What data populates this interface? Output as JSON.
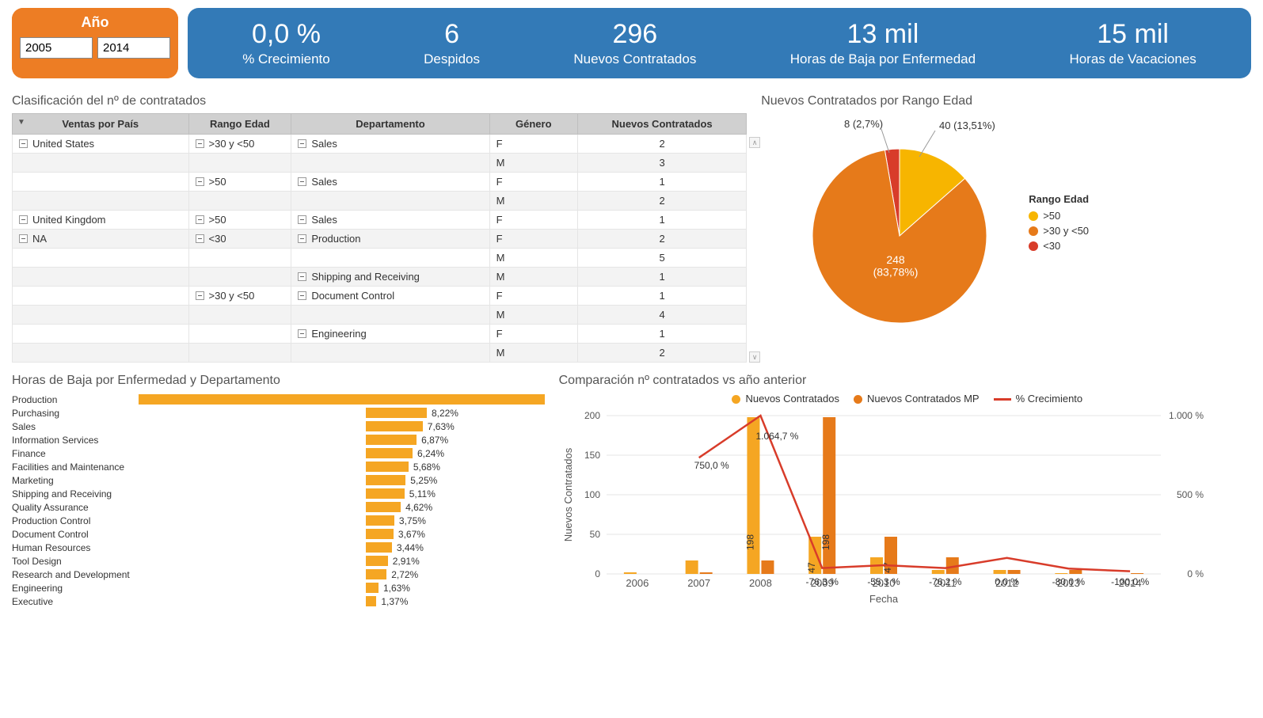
{
  "colors": {
    "orange": "#ed7d24",
    "orange_light": "#f5a623",
    "orange_pie": "#e67a1a",
    "amber": "#f7b500",
    "red": "#d83c2a",
    "blue": "#337ab7",
    "grid": "#e0e0e0",
    "white": "#ffffff"
  },
  "year_filter": {
    "title": "Año",
    "from": "2005",
    "to": "2014"
  },
  "kpis": [
    {
      "value": "0,0 %",
      "label": "% Crecimiento"
    },
    {
      "value": "6",
      "label": "Despidos"
    },
    {
      "value": "296",
      "label": "Nuevos Contratados"
    },
    {
      "value": "13 mil",
      "label": "Horas de Baja por Enfermedad"
    },
    {
      "value": "15 mil",
      "label": "Horas de Vacaciones"
    }
  ],
  "clasif": {
    "title": "Clasificación del nº de contratados",
    "columns": [
      "Ventas por País",
      "Rango Edad",
      "Departamento",
      "Género",
      "Nuevos Contratados"
    ],
    "rows": [
      {
        "pais": "United States",
        "rango": ">30 y <50",
        "dept": "Sales",
        "gen": "F",
        "val": "2",
        "alt": false,
        "show": [
          true,
          true,
          true
        ]
      },
      {
        "pais": "",
        "rango": "",
        "dept": "",
        "gen": "M",
        "val": "3",
        "alt": true,
        "show": [
          false,
          false,
          false
        ]
      },
      {
        "pais": "",
        "rango": ">50",
        "dept": "Sales",
        "gen": "F",
        "val": "1",
        "alt": false,
        "show": [
          false,
          true,
          true
        ]
      },
      {
        "pais": "",
        "rango": "",
        "dept": "",
        "gen": "M",
        "val": "2",
        "alt": true,
        "show": [
          false,
          false,
          false
        ]
      },
      {
        "pais": "United Kingdom",
        "rango": ">50",
        "dept": "Sales",
        "gen": "F",
        "val": "1",
        "alt": false,
        "show": [
          true,
          true,
          true
        ]
      },
      {
        "pais": "NA",
        "rango": "<30",
        "dept": "Production",
        "gen": "F",
        "val": "2",
        "alt": true,
        "show": [
          true,
          true,
          true
        ]
      },
      {
        "pais": "",
        "rango": "",
        "dept": "",
        "gen": "M",
        "val": "5",
        "alt": false,
        "show": [
          false,
          false,
          false
        ]
      },
      {
        "pais": "",
        "rango": "",
        "dept": "Shipping and Receiving",
        "gen": "M",
        "val": "1",
        "alt": true,
        "show": [
          false,
          false,
          true
        ]
      },
      {
        "pais": "",
        "rango": ">30 y <50",
        "dept": "Document Control",
        "gen": "F",
        "val": "1",
        "alt": false,
        "show": [
          false,
          true,
          true
        ]
      },
      {
        "pais": "",
        "rango": "",
        "dept": "",
        "gen": "M",
        "val": "4",
        "alt": true,
        "show": [
          false,
          false,
          false
        ]
      },
      {
        "pais": "",
        "rango": "",
        "dept": "Engineering",
        "gen": "F",
        "val": "1",
        "alt": false,
        "show": [
          false,
          false,
          true
        ]
      },
      {
        "pais": "",
        "rango": "",
        "dept": "",
        "gen": "M",
        "val": "2",
        "alt": true,
        "show": [
          false,
          false,
          false
        ]
      }
    ]
  },
  "pie": {
    "title": "Nuevos Contratados por Rango Edad",
    "legend_title": "Rango Edad",
    "total": 296,
    "slices": [
      {
        "label": ">50",
        "value": 40,
        "pct": "13,51%",
        "color": "#f7b500",
        "anno": "40 (13,51%)"
      },
      {
        "label": ">30 y <50",
        "value": 248,
        "pct": "83,78%",
        "color": "#e67a1a",
        "anno": "248\n(83,78%)"
      },
      {
        "label": "<30",
        "value": 8,
        "pct": "2,7%",
        "color": "#d83c2a",
        "anno": "8 (2,7%)"
      }
    ]
  },
  "hbar": {
    "title": "Horas de Baja por Enfermedad y Departamento",
    "max_width_pct": 100,
    "bar_color": "#f5a623",
    "rows": [
      {
        "label": "Production",
        "pct": "",
        "w": 100
      },
      {
        "label": "Purchasing",
        "pct": "8,22%",
        "w": 15
      },
      {
        "label": "Sales",
        "pct": "7,63%",
        "w": 14
      },
      {
        "label": "Information Services",
        "pct": "6,87%",
        "w": 12.5
      },
      {
        "label": "Finance",
        "pct": "6,24%",
        "w": 11.5
      },
      {
        "label": "Facilities and Maintenance",
        "pct": "5,68%",
        "w": 10.5
      },
      {
        "label": "Marketing",
        "pct": "5,25%",
        "w": 9.8
      },
      {
        "label": "Shipping and Receiving",
        "pct": "5,11%",
        "w": 9.5
      },
      {
        "label": "Quality Assurance",
        "pct": "4,62%",
        "w": 8.6
      },
      {
        "label": "Production Control",
        "pct": "3,75%",
        "w": 7
      },
      {
        "label": "Document Control",
        "pct": "3,67%",
        "w": 6.8
      },
      {
        "label": "Human Resources",
        "pct": "3,44%",
        "w": 6.4
      },
      {
        "label": "Tool Design",
        "pct": "2,91%",
        "w": 5.4
      },
      {
        "label": "Research and Development",
        "pct": "2,72%",
        "w": 5.1
      },
      {
        "label": "Engineering",
        "pct": "1,63%",
        "w": 3.1
      },
      {
        "label": "Executive",
        "pct": "1,37%",
        "w": 2.6
      }
    ]
  },
  "combo": {
    "title": "Comparación nº contratados vs año anterior",
    "y_title": "Nuevos Contratados",
    "x_title": "Fecha",
    "legend": [
      {
        "label": "Nuevos Contratados",
        "color": "#f5a623",
        "type": "dot"
      },
      {
        "label": "Nuevos Contratados MP",
        "color": "#e67a1a",
        "type": "dot"
      },
      {
        "label": "% Crecimiento",
        "color": "#d83c2a",
        "type": "line"
      }
    ],
    "y_left": {
      "min": 0,
      "max": 200,
      "step": 50
    },
    "y_right": {
      "min": 0,
      "max": 1000,
      "suffix": "%",
      "ticks": [
        "0 %",
        "500 %",
        "1.000 %"
      ]
    },
    "years": [
      "2006",
      "2007",
      "2008",
      "2009",
      "2010",
      "2011",
      "2012",
      "2013",
      "2014"
    ],
    "series_a": [
      2,
      17,
      198,
      47,
      21,
      5,
      5,
      1,
      0
    ],
    "series_b": [
      0,
      2,
      17,
      198,
      47,
      21,
      5,
      5,
      1
    ],
    "growth_labels": [
      "",
      "750,0 %",
      "1.064,7 %",
      "-76,3 %",
      "-55,3 %",
      "-76,2 %",
      "0,0 %",
      "-80,0 %",
      "-100,0 %"
    ],
    "growth_values_scaled": [
      null,
      750,
      1065,
      -76,
      -55,
      -76,
      0,
      -80,
      -100
    ],
    "bar_labels": {
      "2008_a": "198",
      "2009_b": "198",
      "2009_a": "47",
      "2010_b": "47"
    }
  }
}
